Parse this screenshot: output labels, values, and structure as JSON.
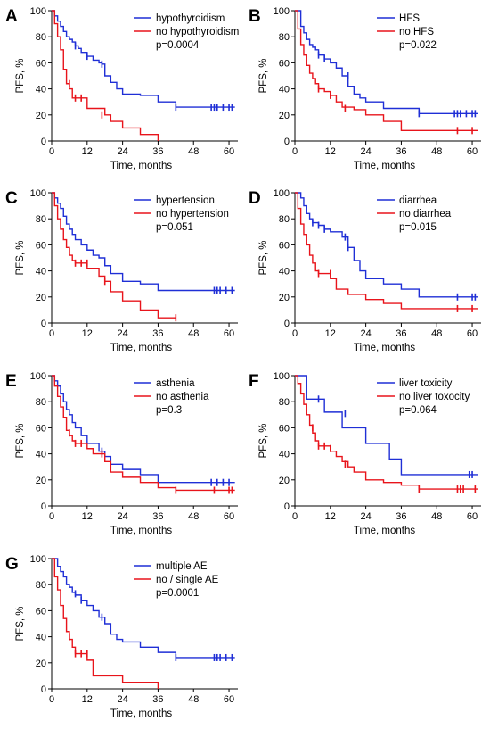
{
  "figure": {
    "colors": {
      "blue": "#1f2fd6",
      "red": "#e8141b",
      "axis": "#000000"
    }
  },
  "chart_data": [
    {
      "panel": "A",
      "type": "line",
      "step": true,
      "xlabel": "Time, months",
      "ylabel": "PFS, %",
      "xlim": [
        0,
        63
      ],
      "ylim": [
        0,
        100
      ],
      "xticks": [
        0,
        12,
        24,
        36,
        48,
        60
      ],
      "yticks": [
        0,
        20,
        40,
        60,
        80,
        100
      ],
      "pvalue": "p=0.0004",
      "series": [
        {
          "name": "hypothyroidism",
          "color": "#1f2fd6",
          "x": [
            0,
            1,
            2,
            3,
            4,
            5,
            6,
            7,
            8,
            9,
            10,
            12,
            14,
            16,
            17,
            18,
            20,
            22,
            24,
            30,
            36,
            42,
            62
          ],
          "y": [
            100,
            96,
            92,
            88,
            84,
            80,
            78,
            76,
            73,
            71,
            68,
            65,
            62,
            60,
            59,
            50,
            45,
            40,
            36,
            35,
            30,
            26,
            26
          ],
          "censored_x": [
            8,
            12,
            17,
            42,
            54,
            55,
            56,
            58,
            60,
            61
          ],
          "censored_y": [
            73,
            65,
            59,
            26,
            26,
            26,
            26,
            26,
            26,
            26
          ]
        },
        {
          "name": "no hypothyroidism",
          "color": "#e8141b",
          "x": [
            0,
            1,
            2,
            3,
            4,
            5,
            6,
            7,
            8,
            12,
            18,
            20,
            24,
            30,
            36
          ],
          "y": [
            100,
            90,
            80,
            70,
            55,
            44,
            40,
            33,
            33,
            25,
            20,
            15,
            10,
            5,
            0
          ],
          "censored_x": [
            6,
            8,
            10,
            17
          ],
          "censored_y": [
            44,
            33,
            33,
            20
          ]
        }
      ]
    },
    {
      "panel": "B",
      "type": "line",
      "step": true,
      "xlabel": "Time, months",
      "ylabel": "PFS, %",
      "xlim": [
        0,
        63
      ],
      "ylim": [
        0,
        100
      ],
      "xticks": [
        0,
        12,
        24,
        36,
        48,
        60
      ],
      "yticks": [
        0,
        20,
        40,
        60,
        80,
        100
      ],
      "pvalue": "p=0.022",
      "series": [
        {
          "name": "HFS",
          "color": "#1f2fd6",
          "x": [
            0,
            2,
            3,
            4,
            5,
            6,
            7,
            8,
            10,
            12,
            14,
            16,
            18,
            20,
            22,
            24,
            30,
            42,
            62
          ],
          "y": [
            100,
            88,
            83,
            78,
            74,
            72,
            70,
            66,
            63,
            60,
            56,
            50,
            42,
            36,
            33,
            30,
            25,
            21,
            21
          ],
          "censored_x": [
            8,
            10,
            18,
            42,
            54,
            55,
            56,
            58,
            60,
            61
          ],
          "censored_y": [
            66,
            63,
            50,
            21,
            21,
            21,
            21,
            21,
            21,
            21
          ]
        },
        {
          "name": "no HFS",
          "color": "#e8141b",
          "x": [
            0,
            1,
            2,
            3,
            4,
            5,
            6,
            7,
            8,
            10,
            12,
            14,
            16,
            20,
            24,
            30,
            36,
            62
          ],
          "y": [
            100,
            86,
            74,
            66,
            58,
            52,
            48,
            44,
            40,
            38,
            35,
            30,
            26,
            24,
            20,
            15,
            8,
            8
          ],
          "censored_x": [
            8,
            12,
            17,
            55,
            60
          ],
          "censored_y": [
            40,
            35,
            25,
            8,
            8
          ]
        }
      ]
    },
    {
      "panel": "C",
      "type": "line",
      "step": true,
      "xlabel": "Time, months",
      "ylabel": "PFS, %",
      "xlim": [
        0,
        63
      ],
      "ylim": [
        0,
        100
      ],
      "xticks": [
        0,
        12,
        24,
        36,
        48,
        60
      ],
      "yticks": [
        0,
        20,
        40,
        60,
        80,
        100
      ],
      "pvalue": "p=0.051",
      "series": [
        {
          "name": "hypertension",
          "color": "#1f2fd6",
          "x": [
            0,
            1,
            2,
            3,
            4,
            5,
            6,
            7,
            8,
            10,
            12,
            14,
            16,
            18,
            20,
            24,
            30,
            36,
            62
          ],
          "y": [
            100,
            96,
            92,
            88,
            82,
            76,
            72,
            68,
            64,
            60,
            56,
            52,
            50,
            44,
            38,
            32,
            30,
            25,
            25
          ],
          "censored_x": [
            55,
            56,
            57,
            59,
            61
          ],
          "censored_y": [
            25,
            25,
            25,
            25,
            25
          ]
        },
        {
          "name": "no hypertension",
          "color": "#e8141b",
          "x": [
            0,
            1,
            2,
            3,
            4,
            5,
            6,
            7,
            8,
            12,
            16,
            18,
            20,
            24,
            30,
            36,
            42
          ],
          "y": [
            100,
            90,
            80,
            72,
            64,
            58,
            52,
            48,
            46,
            42,
            36,
            32,
            24,
            17,
            10,
            4,
            4
          ],
          "censored_x": [
            6,
            8,
            10,
            12,
            18,
            42
          ],
          "censored_y": [
            55,
            46,
            46,
            46,
            32,
            4
          ]
        }
      ]
    },
    {
      "panel": "D",
      "type": "line",
      "step": true,
      "xlabel": "Time, months",
      "ylabel": "PFS, %",
      "xlim": [
        0,
        63
      ],
      "ylim": [
        0,
        100
      ],
      "xticks": [
        0,
        12,
        24,
        36,
        48,
        60
      ],
      "yticks": [
        0,
        20,
        40,
        60,
        80,
        100
      ],
      "pvalue": "p=0.015",
      "series": [
        {
          "name": "diarrhea",
          "color": "#1f2fd6",
          "x": [
            0,
            2,
            3,
            4,
            5,
            6,
            8,
            10,
            12,
            16,
            18,
            20,
            22,
            24,
            30,
            36,
            42,
            62
          ],
          "y": [
            100,
            96,
            90,
            84,
            80,
            77,
            75,
            72,
            70,
            66,
            58,
            48,
            40,
            34,
            30,
            26,
            20,
            20
          ],
          "censored_x": [
            6,
            8,
            10,
            17,
            18,
            55,
            60,
            61
          ],
          "censored_y": [
            77,
            75,
            72,
            66,
            58,
            20,
            20,
            20
          ]
        },
        {
          "name": "no diarrhea",
          "color": "#e8141b",
          "x": [
            0,
            1,
            2,
            3,
            4,
            5,
            6,
            7,
            8,
            12,
            14,
            18,
            24,
            30,
            36,
            62
          ],
          "y": [
            100,
            88,
            76,
            68,
            60,
            52,
            46,
            40,
            38,
            34,
            26,
            22,
            18,
            15,
            11,
            11
          ],
          "censored_x": [
            8,
            12,
            55,
            60
          ],
          "censored_y": [
            38,
            38,
            11,
            11
          ]
        }
      ]
    },
    {
      "panel": "E",
      "type": "line",
      "step": true,
      "xlabel": "Time, months",
      "ylabel": "PFS, %",
      "xlim": [
        0,
        63
      ],
      "ylim": [
        0,
        100
      ],
      "xticks": [
        0,
        12,
        24,
        36,
        48,
        60
      ],
      "yticks": [
        0,
        20,
        40,
        60,
        80,
        100
      ],
      "pvalue": "p=0.3",
      "series": [
        {
          "name": "asthenia",
          "color": "#1f2fd6",
          "x": [
            0,
            1,
            2,
            3,
            4,
            5,
            6,
            7,
            8,
            10,
            12,
            16,
            18,
            20,
            24,
            30,
            36,
            62
          ],
          "y": [
            100,
            96,
            92,
            86,
            80,
            74,
            70,
            64,
            60,
            54,
            48,
            42,
            38,
            32,
            28,
            24,
            18,
            18
          ],
          "censored_x": [
            17,
            54,
            56,
            58,
            60
          ],
          "censored_y": [
            42,
            18,
            18,
            18,
            18
          ]
        },
        {
          "name": "no asthenia",
          "color": "#e8141b",
          "x": [
            0,
            1,
            2,
            3,
            4,
            5,
            6,
            7,
            8,
            12,
            14,
            18,
            20,
            24,
            30,
            36,
            42,
            62
          ],
          "y": [
            100,
            92,
            84,
            76,
            68,
            58,
            54,
            50,
            48,
            44,
            40,
            34,
            26,
            22,
            18,
            14,
            12,
            12
          ],
          "censored_x": [
            6,
            8,
            10,
            17,
            42,
            55,
            60,
            61
          ],
          "censored_y": [
            56,
            48,
            48,
            40,
            12,
            12,
            12,
            12
          ]
        }
      ]
    },
    {
      "panel": "F",
      "type": "line",
      "step": true,
      "xlabel": "Time, months",
      "ylabel": "PFS, %",
      "xlim": [
        0,
        63
      ],
      "ylim": [
        0,
        100
      ],
      "xticks": [
        0,
        12,
        24,
        36,
        48,
        60
      ],
      "yticks": [
        0,
        20,
        40,
        60,
        80,
        100
      ],
      "pvalue": "p=0.064",
      "series": [
        {
          "name": "liver toxicity",
          "color": "#1f2fd6",
          "x": [
            0,
            4,
            10,
            16,
            18,
            24,
            30,
            32,
            36,
            42,
            62
          ],
          "y": [
            100,
            82,
            72,
            60,
            60,
            48,
            48,
            36,
            24,
            24,
            24
          ],
          "censored_x": [
            8,
            17,
            59,
            60
          ],
          "censored_y": [
            82,
            71,
            24,
            24
          ]
        },
        {
          "name": "no liver toxocity",
          "color": "#e8141b",
          "x": [
            0,
            1,
            2,
            3,
            4,
            5,
            6,
            7,
            8,
            12,
            14,
            16,
            18,
            20,
            24,
            30,
            36,
            42,
            62
          ],
          "y": [
            100,
            94,
            86,
            78,
            70,
            62,
            56,
            50,
            46,
            42,
            38,
            34,
            30,
            26,
            20,
            18,
            16,
            13,
            13
          ],
          "censored_x": [
            6,
            8,
            10,
            12,
            17,
            42,
            55,
            56,
            57,
            61
          ],
          "censored_y": [
            60,
            46,
            46,
            44,
            32,
            13,
            13,
            13,
            13,
            13
          ]
        }
      ]
    },
    {
      "panel": "G",
      "type": "line",
      "step": true,
      "xlabel": "Time, months",
      "ylabel": "PFS, %",
      "xlim": [
        0,
        63
      ],
      "ylim": [
        0,
        100
      ],
      "xticks": [
        0,
        12,
        24,
        36,
        48,
        60
      ],
      "yticks": [
        0,
        20,
        40,
        60,
        80,
        100
      ],
      "pvalue": "p=0.0001",
      "series": [
        {
          "name": "multiple AE",
          "color": "#1f2fd6",
          "x": [
            0,
            2,
            3,
            4,
            5,
            6,
            7,
            8,
            10,
            12,
            14,
            16,
            18,
            20,
            22,
            24,
            30,
            36,
            42,
            62
          ],
          "y": [
            100,
            94,
            90,
            86,
            80,
            78,
            74,
            72,
            68,
            64,
            60,
            55,
            50,
            42,
            38,
            36,
            32,
            28,
            24,
            24
          ],
          "censored_x": [
            8,
            10,
            17,
            42,
            55,
            56,
            57,
            59,
            61
          ],
          "censored_y": [
            73,
            68,
            55,
            24,
            24,
            24,
            24,
            24,
            24
          ]
        },
        {
          "name": "no / single AE",
          "color": "#e8141b",
          "x": [
            0,
            1,
            2,
            3,
            4,
            5,
            6,
            7,
            8,
            10,
            12,
            14,
            18,
            24,
            30,
            36
          ],
          "y": [
            100,
            86,
            76,
            64,
            54,
            44,
            38,
            32,
            27,
            27,
            22,
            10,
            10,
            5,
            5,
            0
          ],
          "censored_x": [
            6,
            8,
            10,
            12
          ],
          "censored_y": [
            40,
            27,
            27,
            27
          ]
        }
      ]
    }
  ]
}
